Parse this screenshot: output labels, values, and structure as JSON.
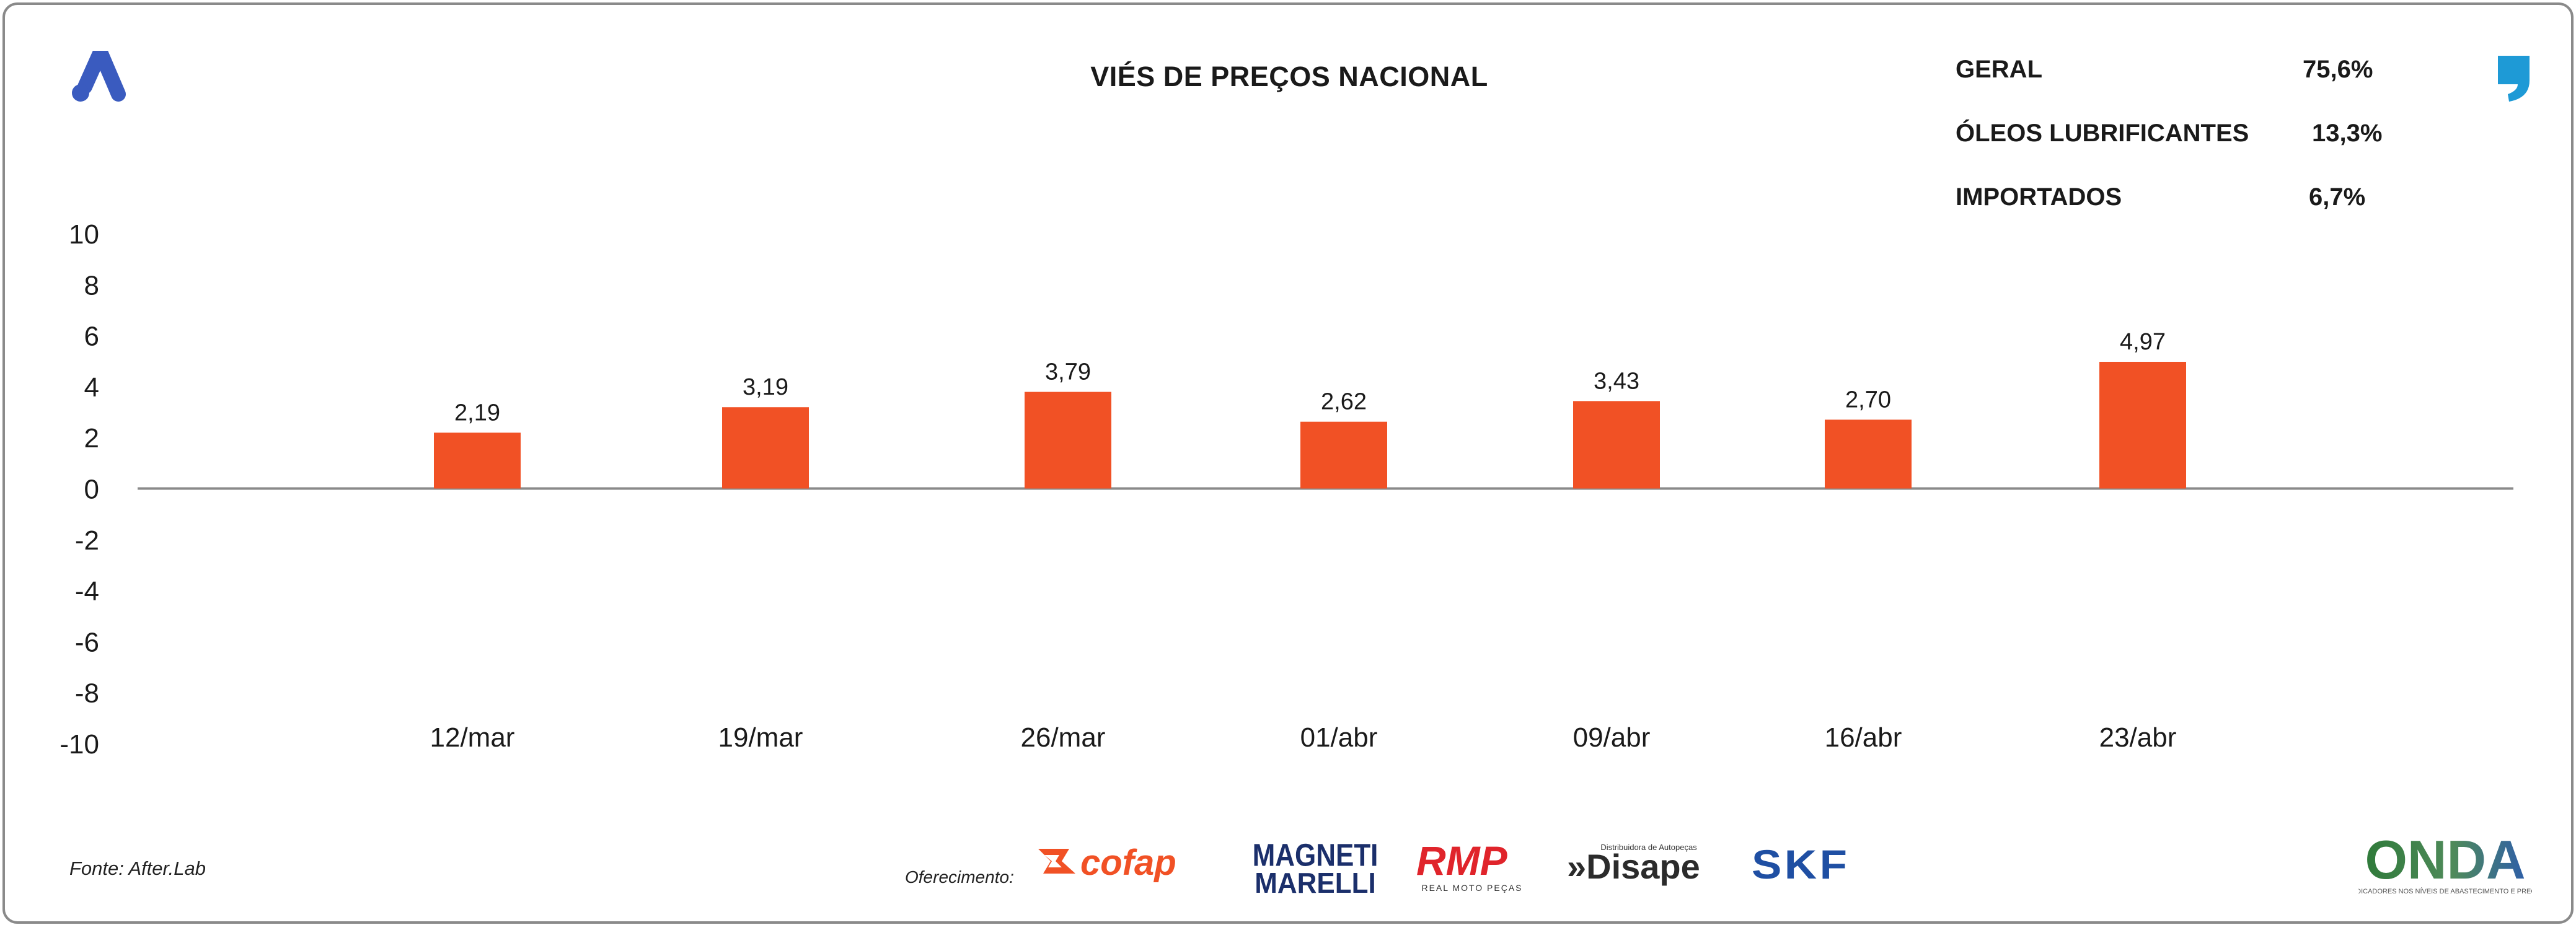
{
  "header": {
    "title": "VIÉS DE PREÇOS NACIONAL"
  },
  "stats": [
    {
      "label": "GERAL",
      "value": "75,6%"
    },
    {
      "label": "ÓLEOS LUBRIFICANTES",
      "value": "13,3%"
    },
    {
      "label": "IMPORTADOS",
      "value": "6,7%"
    }
  ],
  "colors": {
    "bar": "#f15125",
    "axis": "#8a8a8a",
    "brand_blue": "#3a5bbf",
    "quote_blue": "#1e9ad6"
  },
  "chart_data": {
    "type": "bar",
    "title": "VIÉS DE PREÇOS NACIONAL",
    "categories": [
      "12/mar",
      "19/mar",
      "26/mar",
      "01/abr",
      "09/abr",
      "16/abr",
      "23/abr"
    ],
    "values": [
      2.19,
      3.19,
      3.79,
      2.62,
      3.43,
      2.7,
      4.97
    ],
    "value_labels": [
      "2,19",
      "3,19",
      "3,79",
      "2,62",
      "3,43",
      "2,70",
      "4,97"
    ],
    "ylim": [
      -10,
      10
    ],
    "yticks": [
      "10",
      "8",
      "6",
      "4",
      "2",
      "0",
      "-2",
      "-4",
      "-6",
      "-8",
      "-10"
    ],
    "xlabel": "",
    "ylabel": "",
    "grid": false,
    "legend": "none"
  },
  "footer": {
    "source": "Fonte: After.Lab",
    "sponsor_label": "Oferecimento:",
    "sponsors": [
      "cofap",
      "MAGNETI MARELLI",
      "RMP",
      "Disape",
      "SKF"
    ],
    "sponsor_subtexts": {
      "rmp": "REAL MOTO PEÇAS",
      "disape": "Distribuidora de Autopeças"
    },
    "partner_logo": "ONDA",
    "partner_subtext": "INDICADORES NOS NÍVEIS DE ABASTECIMENTO E PREÇO"
  },
  "icons": {
    "brand_logo": "after-lab-logo-icon",
    "quote": "quote-mark-icon"
  }
}
